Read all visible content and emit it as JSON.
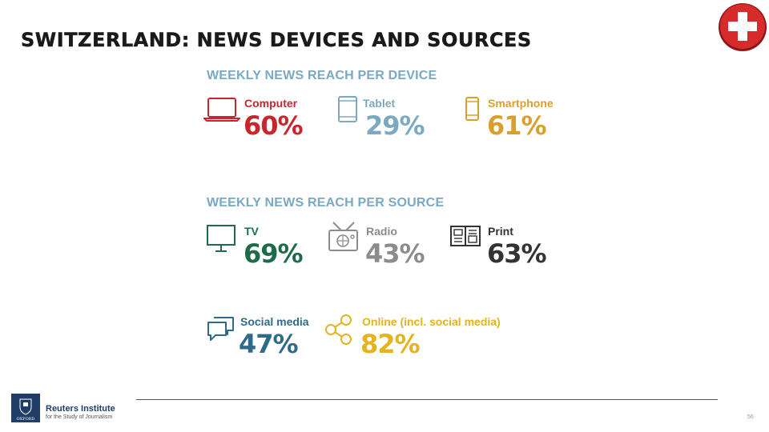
{
  "title": "SWITZERLAND: NEWS DEVICES AND SOURCES",
  "colors": {
    "heading": "#7aa9c0",
    "computer": "#c8262c",
    "tablet": "#7aa9c0",
    "smartphone": "#d9a02e",
    "tv": "#1e6b4a",
    "radio": "#8c8c8c",
    "print": "#333333",
    "social": "#2e6b8a",
    "online": "#e3b320",
    "flag": "#d52b2b"
  },
  "devices": {
    "heading": "WEEKLY NEWS REACH PER DEVICE",
    "items": [
      {
        "label": "Computer",
        "value": "60%",
        "icon": "laptop-icon"
      },
      {
        "label": "Tablet",
        "value": "29%",
        "icon": "tablet-icon"
      },
      {
        "label": "Smartphone",
        "value": "61%",
        "icon": "smartphone-icon"
      }
    ]
  },
  "sources": {
    "heading": "WEEKLY NEWS REACH PER SOURCE",
    "items": [
      {
        "label": "TV",
        "value": "69%",
        "icon": "tv-icon"
      },
      {
        "label": "Radio",
        "value": "43%",
        "icon": "radio-icon"
      },
      {
        "label": "Print",
        "value": "63%",
        "icon": "newspaper-icon"
      },
      {
        "label": "Social media",
        "value": "47%",
        "icon": "chat-bubbles-icon"
      },
      {
        "label": "Online (incl. social media)",
        "value": "82%",
        "icon": "share-icon"
      }
    ]
  },
  "footer": {
    "org_name": "Reuters Institute",
    "org_sub": "for the Study of Journalism",
    "university": "OXFORD",
    "page": "56"
  }
}
